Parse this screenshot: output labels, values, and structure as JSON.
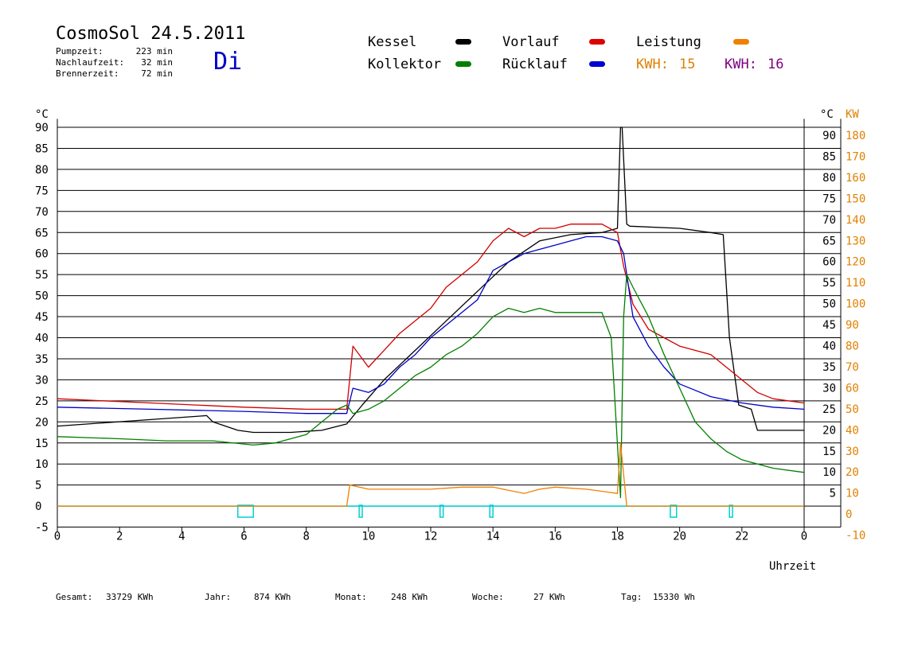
{
  "header": {
    "title": "CosmoSol 24.5.2011",
    "weekday": "Di",
    "stats": [
      {
        "label": "Pumpzeit:",
        "value": "223 min"
      },
      {
        "label": "Nachlaufzeit:",
        "value": "32 min"
      },
      {
        "label": "Brennerzeit:",
        "value": "72 min"
      }
    ]
  },
  "legend": {
    "kessel": "Kessel",
    "vorlauf": "Vorlauf",
    "leistung": "Leistung",
    "kollektor": "Kollektor",
    "ruecklauf": "Rücklauf",
    "kwh1_label": "KWH:",
    "kwh1_value": "15",
    "kwh2_label": "KWH:",
    "kwh2_value": "16"
  },
  "colors": {
    "kessel": "#000000",
    "vorlauf": "#d00000",
    "leistung": "#f08000",
    "kollektor": "#008000",
    "ruecklauf": "#0000c8",
    "kwh2": "#800080",
    "pump": "#00d0d0"
  },
  "footer": [
    {
      "label": "Gesamt:",
      "value": "33729 KWh"
    },
    {
      "label": "Jahr:",
      "value": "874 KWh"
    },
    {
      "label": "Monat:",
      "value": "248 KWh"
    },
    {
      "label": "Woche:",
      "value": "27 KWh"
    },
    {
      "label": "Tag:",
      "value": "15330 Wh"
    }
  ],
  "chart_data": {
    "type": "line",
    "xlabel": "Uhrzeit",
    "ylabel_left": "°C",
    "ylabel_right_1": "°C",
    "ylabel_right_2": "KW",
    "xlim": [
      0,
      24
    ],
    "ylim": [
      -5,
      92
    ],
    "x_ticks": [
      "0",
      "2",
      "4",
      "6",
      "8",
      "10",
      "12",
      "14",
      "16",
      "18",
      "20",
      "22",
      "0"
    ],
    "y_ticks_left": [
      "90",
      "85",
      "80",
      "75",
      "70",
      "65",
      "60",
      "55",
      "50",
      "45",
      "40",
      "35",
      "30",
      "25",
      "20",
      "15",
      "10",
      "5",
      "0",
      "-5"
    ],
    "y_ticks_right_c": [
      "90",
      "85",
      "80",
      "75",
      "70",
      "65",
      "60",
      "55",
      "50",
      "45",
      "40",
      "35",
      "30",
      "25",
      "20",
      "15",
      "10",
      "5"
    ],
    "y_ticks_right_kw": [
      "180",
      "170",
      "160",
      "150",
      "140",
      "130",
      "120",
      "110",
      "100",
      "90",
      "80",
      "70",
      "60",
      "50",
      "40",
      "30",
      "20",
      "10",
      "0",
      "-10"
    ],
    "grid": "horizontal",
    "series": [
      {
        "name": "Kessel",
        "color": "#000000",
        "x": [
          0,
          4.8,
          5.0,
          5.8,
          6.3,
          7.5,
          8.5,
          9.3,
          9.8,
          10.5,
          11.5,
          12.5,
          13.5,
          14.5,
          15.5,
          16.5,
          17.5,
          18.0,
          18.1,
          18.15,
          18.3,
          18.4,
          20.0,
          21.0,
          21.4,
          21.6,
          21.9,
          22.3,
          22.5,
          24.0
        ],
        "y": [
          19,
          21.5,
          20,
          18,
          17.5,
          17.5,
          18,
          19.5,
          24,
          30,
          37,
          44,
          51,
          58,
          63,
          64.5,
          65,
          66,
          90,
          90,
          67,
          66.5,
          66,
          65,
          64.5,
          40,
          24,
          23,
          18,
          18
        ]
      },
      {
        "name": "Vorlauf",
        "color": "#d00000",
        "x": [
          0,
          3,
          6,
          8,
          9.3,
          9.5,
          10,
          10.5,
          11,
          11.5,
          12,
          12.5,
          13,
          13.5,
          14,
          14.5,
          15,
          15.5,
          16,
          16.5,
          17,
          17.5,
          18,
          18.2,
          18.5,
          19,
          19.5,
          20,
          21,
          21.5,
          22,
          22.5,
          23,
          24
        ],
        "y": [
          25.5,
          24.5,
          23.5,
          23,
          23,
          38,
          33,
          37,
          41,
          44,
          47,
          52,
          55,
          58,
          63,
          66,
          64,
          66,
          66,
          67,
          67,
          67,
          65,
          57,
          48,
          42,
          40,
          38,
          36,
          33,
          30,
          27,
          25.5,
          24.5
        ]
      },
      {
        "name": "Rücklauf",
        "color": "#0000c8",
        "x": [
          0,
          3,
          6,
          8,
          9.3,
          9.5,
          10,
          10.5,
          11,
          11.5,
          12,
          12.5,
          13,
          13.5,
          14,
          14.5,
          15,
          15.5,
          16,
          16.5,
          17,
          17.5,
          18,
          18.2,
          18.5,
          19,
          19.5,
          20,
          21,
          22,
          23,
          24
        ],
        "y": [
          23.5,
          23,
          22.5,
          22,
          22,
          28,
          27,
          29,
          33,
          36,
          40,
          43,
          46,
          49,
          56,
          58,
          60,
          61,
          62,
          63,
          64,
          64,
          63,
          60,
          45,
          38,
          33,
          29,
          26,
          24.5,
          23.5,
          23
        ]
      },
      {
        "name": "Kollektor",
        "color": "#008000",
        "x": [
          0,
          2,
          3.5,
          5,
          6.3,
          7,
          8,
          8.5,
          9.0,
          9.3,
          9.5,
          10,
          10.5,
          11,
          11.5,
          12,
          12.5,
          13,
          13.5,
          14,
          14.5,
          15,
          15.5,
          16,
          16.5,
          17,
          17.5,
          17.8,
          18.1,
          18.2,
          18.3,
          18.5,
          19,
          19.5,
          20,
          20.5,
          21,
          21.5,
          22,
          22.5,
          23,
          24
        ],
        "y": [
          16.5,
          16,
          15.5,
          15.5,
          14.5,
          15,
          17,
          20,
          23,
          24,
          22,
          23,
          25,
          28,
          31,
          33,
          36,
          38,
          41,
          45,
          47,
          46,
          47,
          46,
          46,
          46,
          46,
          40,
          2,
          45,
          55,
          52,
          45,
          36,
          28,
          20,
          16,
          13,
          11,
          10,
          9,
          8
        ]
      }
    ],
    "power_series": {
      "name": "Leistung",
      "color": "#f08000",
      "x": [
        0,
        9.3,
        9.4,
        10,
        11,
        12,
        13,
        14,
        15,
        15.5,
        16,
        17,
        18,
        18.1,
        18.3,
        24
      ],
      "y_kw": [
        0,
        0,
        10,
        8,
        8,
        8,
        9,
        9,
        6,
        8,
        9,
        8,
        6,
        30,
        0,
        0
      ]
    },
    "pump_state": {
      "name": "Pumpe",
      "color": "#00d0d0",
      "intervals": [
        [
          5.8,
          6.3
        ],
        [
          9.7,
          9.8
        ],
        [
          12.3,
          12.4
        ],
        [
          13.9,
          14.0
        ],
        [
          19.7,
          19.9
        ],
        [
          21.6,
          21.7
        ]
      ]
    }
  }
}
